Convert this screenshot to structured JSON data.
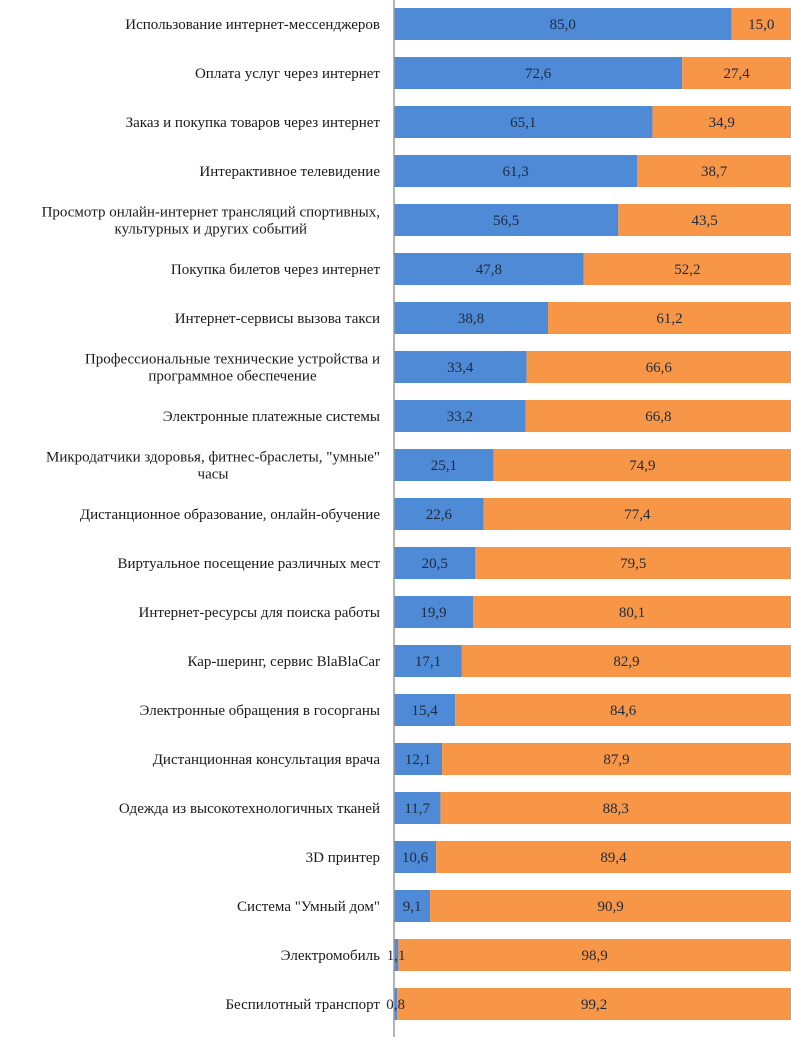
{
  "chart_data": {
    "type": "bar",
    "orientation": "horizontal",
    "stacked": true,
    "percent_stacked": true,
    "title": "",
    "xlabel": "",
    "ylabel": "",
    "xlim": [
      0,
      100
    ],
    "grid": false,
    "legend": "none",
    "categories": [
      "Использование интернет-мессенджеров",
      "Оплата услуг  через интернет",
      "Заказ и покупка товаров через интернет",
      "Интерактивное телевидение",
      "Просмотр онлайн-интернет трансляций спортивных,\nкультурных  и других событий",
      "Покупка билетов через интернет",
      "Интернет-сервисы  вызова такси",
      "Профессиональные технические устройства  и\nпрограммное обеспечение",
      "Электронные платежные системы",
      "Микродатчики здоровья, фитнес-браслеты, \"умные\"\nчасы",
      "Дистанционное образование, онлайн-обучение",
      "Виртуальное посещение различных мест",
      "Интернет-ресурсы  для поиска работы",
      "Кар-шеринг, сервис BlaBlaCar",
      "Электронные обращения в госорганы",
      "Дистанционная консультация врача",
      "Одежда из высокотехнологичных тканей",
      "3D принтер",
      "Система \"Умный дом\"",
      "Электромобиль",
      "Беспилотный транспорт"
    ],
    "series": [
      {
        "name": "series-1",
        "color": "#4f8ad6",
        "values": [
          85.0,
          72.6,
          65.1,
          61.3,
          56.5,
          47.8,
          38.8,
          33.4,
          33.2,
          25.1,
          22.6,
          20.5,
          19.9,
          17.1,
          15.4,
          12.1,
          11.7,
          10.6,
          9.1,
          1.1,
          0.8
        ],
        "labels": [
          "85,0",
          "72,6",
          "65,1",
          "61,3",
          "56,5",
          "47,8",
          "38,8",
          "33,4",
          "33,2",
          "25,1",
          "22,6",
          "20,5",
          "19,9",
          "17,1",
          "15,4",
          "12,1",
          "11,7",
          "10,6",
          "9,1",
          "1,1",
          "0,8"
        ]
      },
      {
        "name": "series-2",
        "color": "#f79646",
        "values": [
          15.0,
          27.4,
          34.9,
          38.7,
          43.5,
          52.2,
          61.2,
          66.6,
          66.8,
          74.9,
          77.4,
          79.5,
          80.1,
          82.9,
          84.6,
          87.9,
          88.3,
          89.4,
          90.9,
          98.9,
          99.2
        ],
        "labels": [
          "15,0",
          "27,4",
          "34,9",
          "38,7",
          "43,5",
          "52,2",
          "61,2",
          "66,6",
          "66,8",
          "74,9",
          "77,4",
          "79,5",
          "80,1",
          "82,9",
          "84,6",
          "87,9",
          "88,3",
          "89,4",
          "90,9",
          "98,9",
          "99,2"
        ]
      }
    ]
  }
}
